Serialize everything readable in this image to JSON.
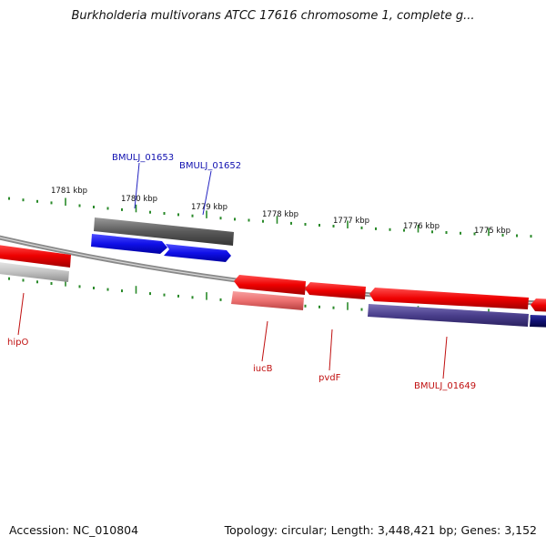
{
  "title": "Burkholderia multivorans ATCC 17616 chromosome 1, complete g...",
  "footer": {
    "accession": "Accession: NC_010804",
    "summary": "Topology: circular; Length: 3,448,421 bp; Genes: 3,152"
  },
  "colors": {
    "forward_gene": "#2020e0",
    "forward_gene_other": "#606060",
    "reverse_gene": "#e01010",
    "reverse_gene_light": "#e87070",
    "reverse_gene_dark": "#3a2f7a",
    "backbone": "#808080",
    "tick": "#2a8a2a",
    "forward_label": "#1010b0",
    "reverse_label": "#c01010"
  },
  "kbp_labels": [
    "1781 kbp",
    "1780 kbp",
    "1779 kbp",
    "1778 kbp",
    "1777 kbp",
    "1776 kbp",
    "1775 kbp"
  ],
  "forward_gene_labels": [
    "BMULJ_01653",
    "BMULJ_01652"
  ],
  "reverse_gene_labels": [
    "hipO",
    "iucB",
    "pvdF",
    "BMULJ_01649"
  ]
}
